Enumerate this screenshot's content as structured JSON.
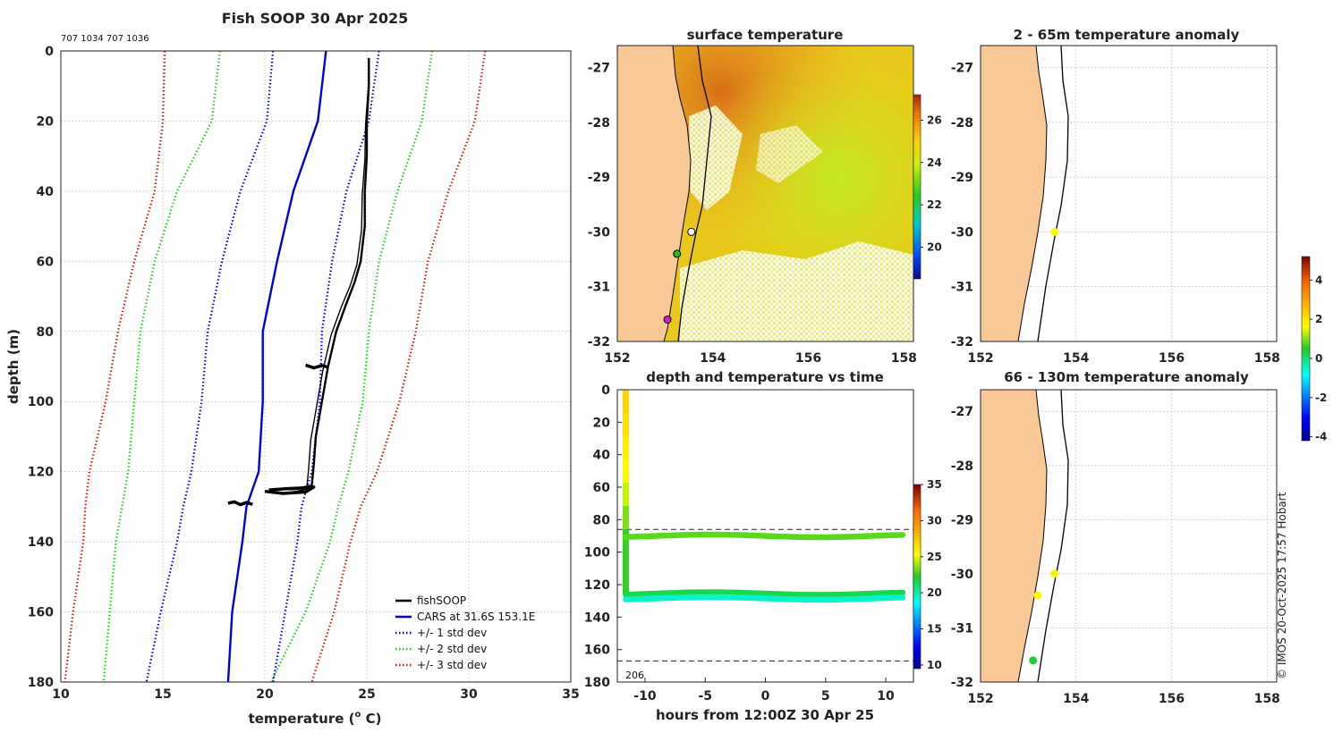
{
  "figure": {
    "title": "Fish SOOP 30 Apr 2025",
    "ids": "707 1034 707 1036",
    "copyright": "© IMOS 20-Oct-2025 17:57 Hobart"
  },
  "chart_data": [
    {
      "id": "profile",
      "type": "line",
      "xlabel": "temperature (",
      "xlabel_sup": "o",
      "xlabel_tail": " C)",
      "ylabel": "depth (m)",
      "xlim": [
        10,
        35
      ],
      "ylim": [
        0,
        180
      ],
      "y_inverted": true,
      "xticks": [
        "10",
        "15",
        "20",
        "25",
        "30",
        "35"
      ],
      "yticks": [
        "0",
        "20",
        "40",
        "60",
        "80",
        "100",
        "120",
        "140",
        "160",
        "180"
      ],
      "depth": [
        0,
        20,
        40,
        60,
        80,
        100,
        120,
        130,
        140,
        160,
        180
      ],
      "series": [
        {
          "name": "CARS mean",
          "color": "#0000dd",
          "style": "solid",
          "x": [
            23.0,
            22.6,
            21.4,
            20.6,
            19.9,
            19.9,
            19.7,
            19.1,
            18.9,
            18.4,
            18.2
          ]
        },
        {
          "name": "+1 sd",
          "color": "#0000dd",
          "style": "dotted",
          "x": [
            25.6,
            25.1,
            24.0,
            23.3,
            22.8,
            22.7,
            22.3,
            21.8,
            21.6,
            21.0,
            20.4
          ]
        },
        {
          "name": "-1 sd",
          "color": "#0000dd",
          "style": "dotted",
          "x": [
            20.4,
            20.1,
            18.8,
            17.9,
            17.2,
            16.9,
            16.4,
            16.0,
            15.7,
            14.9,
            14.2
          ]
        },
        {
          "name": "+2 sd",
          "color": "#22cc22",
          "style": "dotted",
          "x": [
            28.2,
            27.7,
            26.5,
            25.6,
            25.1,
            24.8,
            24.1,
            23.6,
            23.2,
            22.0,
            20.3
          ]
        },
        {
          "name": "-2 sd",
          "color": "#22cc22",
          "style": "dotted",
          "x": [
            17.8,
            17.4,
            15.7,
            14.6,
            13.9,
            13.6,
            13.3,
            13.0,
            12.7,
            12.4,
            12.1
          ]
        },
        {
          "name": "+3 sd",
          "color": "#dd1111",
          "style": "dotted",
          "x": [
            30.8,
            30.3,
            29.0,
            28.0,
            27.4,
            26.6,
            25.5,
            24.7,
            24.2,
            23.4,
            22.3
          ]
        },
        {
          "name": "-3 sd",
          "color": "#dd1111",
          "style": "dotted",
          "x": [
            15.1,
            15.0,
            14.6,
            13.6,
            12.8,
            12.2,
            11.4,
            11.2,
            11.1,
            10.6,
            10.2
          ]
        }
      ],
      "fishsoop": {
        "name": "fishSOOP",
        "color": "#000000",
        "x": [
          25.1,
          25.1,
          25.0,
          25.0,
          24.9,
          24.9,
          24.7,
          24.4,
          24.0,
          23.5,
          23.1,
          22.8,
          22.5,
          22.4,
          22.3,
          21.4,
          20.5
        ],
        "y": [
          2,
          10,
          20,
          30,
          40,
          50,
          60,
          66,
          72,
          80,
          90,
          100,
          110,
          118,
          124,
          125,
          125
        ],
        "blobs": [
          {
            "x": [
              20.2,
              21.2,
              22.0,
              22.4,
              22.0,
              20.9,
              20.0
            ],
            "y": [
              125.2,
              124.8,
              124.6,
              124.4,
              125.8,
              126.2,
              125.6
            ]
          },
          {
            "x": [
              18.2,
              18.5,
              18.8,
              19.1,
              19.4
            ],
            "y": [
              129.0,
              128.6,
              129.4,
              128.8,
              129.3
            ]
          },
          {
            "x": [
              22.0,
              22.4,
              22.8,
              23.1
            ],
            "y": [
              89.6,
              90.4,
              89.7,
              90.2
            ]
          }
        ]
      },
      "legend": {
        "position": "bottom-right",
        "entries": [
          {
            "label": "fishSOOP",
            "color": "#000000",
            "style": "solid"
          },
          {
            "label": "CARS at 31.6S 153.1E",
            "color": "#0000dd",
            "style": "solid"
          },
          {
            "label": "+/- 1 std dev",
            "color": "#0000dd",
            "style": "dotted"
          },
          {
            "label": "+/- 2 std dev",
            "color": "#22cc22",
            "style": "dotted"
          },
          {
            "label": "+/- 3 std dev",
            "color": "#dd1111",
            "style": "dotted"
          }
        ]
      }
    },
    {
      "id": "sst_map",
      "type": "heatmap",
      "title": "surface temperature",
      "xlim": [
        152,
        158.2
      ],
      "ylim": [
        -32,
        -26.6
      ],
      "xticks": [
        "152",
        "154",
        "156",
        "158"
      ],
      "yticks": [
        "-27",
        "-28",
        "-29",
        "-30",
        "-31",
        "-32"
      ],
      "colorbar": {
        "min": 18.5,
        "max": 27.2,
        "ticks": [
          "20",
          "22",
          "24",
          "26"
        ]
      },
      "stations": [
        {
          "lon": 153.55,
          "lat": -30.0,
          "color": "#ffffff"
        },
        {
          "lon": 153.25,
          "lat": -30.4,
          "color": "#22bb22"
        },
        {
          "lon": 153.05,
          "lat": -31.6,
          "color": "#cc22cc"
        }
      ]
    },
    {
      "id": "depth_time",
      "type": "scatter",
      "title": "depth and temperature vs time",
      "xlabel": "hours from 12:00Z 30 Apr 25",
      "xlim": [
        -12.3,
        12.3
      ],
      "ylim": [
        0,
        180
      ],
      "y_inverted": true,
      "xticks": [
        "-10",
        "-5",
        "0",
        "5",
        "10"
      ],
      "yticks": [
        "0",
        "20",
        "40",
        "60",
        "80",
        "100",
        "120",
        "140",
        "160",
        "180"
      ],
      "colorbar": {
        "min": 9.5,
        "max": 35,
        "ticks": [
          "10",
          "15",
          "20",
          "25",
          "30",
          "35"
        ]
      },
      "dashed_depths": [
        86,
        167
      ],
      "annotation": "206",
      "tracks": [
        {
          "depth": 90,
          "temp": 23.0
        },
        {
          "depth": 125.5,
          "temp": 21.5
        },
        {
          "depth": 128.5,
          "temp": 19.5
        }
      ],
      "descent": {
        "hour": -11.6,
        "temps": [
          27.0,
          26.5,
          26.0,
          25.5,
          24.5,
          23.5
        ]
      }
    },
    {
      "id": "anomaly_shallow",
      "type": "scatter",
      "title": "2 - 65m temperature anomaly",
      "xlim": [
        152,
        158.2
      ],
      "ylim": [
        -32,
        -26.6
      ],
      "xticks": [
        "152",
        "154",
        "156",
        "158"
      ],
      "yticks": [
        "-27",
        "-28",
        "-29",
        "-30",
        "-31",
        "-32"
      ],
      "points": [
        {
          "lon": 153.55,
          "lat": -30.0,
          "anomaly": 1.6
        }
      ]
    },
    {
      "id": "anomaly_deep",
      "type": "scatter",
      "title": "66 - 130m temperature anomaly",
      "xlim": [
        152,
        158.2
      ],
      "ylim": [
        -32,
        -26.6
      ],
      "xticks": [
        "152",
        "154",
        "156",
        "158"
      ],
      "yticks": [
        "-27",
        "-28",
        "-29",
        "-30",
        "-31",
        "-32"
      ],
      "points": [
        {
          "lon": 153.55,
          "lat": -30.0,
          "anomaly": 1.8
        },
        {
          "lon": 153.2,
          "lat": -30.4,
          "anomaly": 1.7
        },
        {
          "lon": 153.1,
          "lat": -31.6,
          "anomaly": 0.4
        }
      ],
      "colorbar": {
        "min": -4.2,
        "max": 5.2,
        "ticks": [
          "4",
          "2",
          "0",
          "-2",
          "-4"
        ]
      }
    }
  ],
  "colors": {
    "land": "#f8c896",
    "axis": "#222222"
  }
}
